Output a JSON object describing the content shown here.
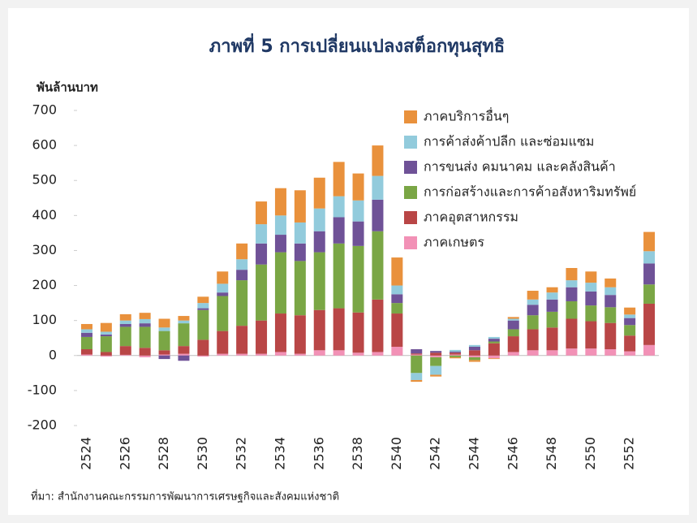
{
  "chart_data": {
    "type": "stacked_bar",
    "title": "ภาพที่ 5 การเปลี่ยนแปลงสต็อกทุนสุทธิ",
    "y_label": "พันล้านบาท",
    "source": "ที่มา: สำนักงานคณะกรรมการพัฒนาการเศรษฐกิจและสังคมแห่งชาติ",
    "categories": [
      "2524",
      null,
      "2526",
      null,
      "2528",
      null,
      "2530",
      null,
      "2532",
      null,
      "2534",
      null,
      "2536",
      null,
      "2538",
      null,
      "2540",
      null,
      "2542",
      null,
      "2544",
      null,
      "2546",
      null,
      "2548",
      null,
      "2550",
      null,
      "2552",
      null
    ],
    "series": [
      {
        "name": "ภาคเกษตร",
        "color": "#f291b6",
        "values": [
          3,
          -3,
          2,
          -5,
          3,
          5,
          -3,
          5,
          5,
          5,
          10,
          5,
          15,
          15,
          8,
          10,
          25,
          3,
          -5,
          3,
          -5,
          -8,
          10,
          15,
          15,
          20,
          20,
          18,
          12,
          30
        ]
      },
      {
        "name": "ภาคอุตสาหกรรม",
        "color": "#b94646",
        "values": [
          15,
          10,
          25,
          22,
          12,
          22,
          45,
          65,
          80,
          95,
          110,
          110,
          115,
          120,
          115,
          150,
          95,
          3,
          8,
          5,
          15,
          35,
          45,
          60,
          65,
          85,
          78,
          75,
          45,
          118
        ]
      },
      {
        "name": "การก่อสร้างและการค้าอสังหาริมทรัพย์",
        "color": "#7aa645",
        "values": [
          35,
          45,
          55,
          60,
          55,
          65,
          85,
          100,
          130,
          160,
          175,
          155,
          165,
          185,
          190,
          195,
          30,
          -50,
          -25,
          -5,
          -8,
          5,
          20,
          40,
          45,
          50,
          45,
          45,
          30,
          55
        ]
      },
      {
        "name": "การขนส่ง คมนาคม และคลังสินค้า",
        "color": "#6f5297",
        "values": [
          12,
          5,
          8,
          10,
          -10,
          -15,
          5,
          10,
          30,
          60,
          50,
          50,
          60,
          75,
          70,
          90,
          25,
          12,
          5,
          3,
          10,
          8,
          25,
          30,
          35,
          40,
          40,
          35,
          20,
          60
        ]
      },
      {
        "name": "การค้าส่งค้าปลีก และซ่อมแซม",
        "color": "#92cbdc",
        "values": [
          10,
          8,
          10,
          12,
          10,
          8,
          15,
          25,
          30,
          55,
          55,
          60,
          65,
          60,
          60,
          68,
          25,
          -20,
          -25,
          5,
          5,
          5,
          5,
          15,
          20,
          20,
          25,
          22,
          10,
          35
        ]
      },
      {
        "name": "ภาคบริการอื่นๆ",
        "color": "#e9913c",
        "values": [
          15,
          25,
          18,
          18,
          25,
          13,
          18,
          35,
          45,
          65,
          78,
          92,
          88,
          98,
          77,
          87,
          80,
          -5,
          -5,
          -3,
          -5,
          -2,
          5,
          25,
          15,
          35,
          32,
          25,
          20,
          55
        ]
      }
    ],
    "ylim": [
      -200,
      700
    ],
    "yticks": [
      -200,
      -100,
      0,
      100,
      200,
      300,
      400,
      500,
      600,
      700
    ],
    "grid": false
  }
}
